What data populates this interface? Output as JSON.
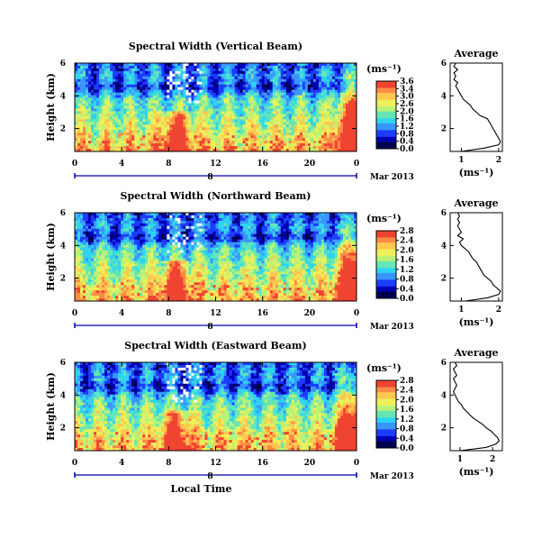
{
  "colors": {
    "colormap": [
      "#000050",
      "#0000b4",
      "#1c3cff",
      "#3a96ff",
      "#2fd4f0",
      "#66e6b4",
      "#b8f278",
      "#eef05a",
      "#ffc850",
      "#ff8c46",
      "#f04432"
    ],
    "markers": "#0000aa",
    "line": "#000000"
  },
  "chart_data": [
    {
      "type": "heatmap",
      "title": "Spectral Width (Vertical Beam)",
      "ylabel": "Height (km)",
      "x_ticks": [
        "0",
        "4",
        "8",
        "12",
        "16",
        "20",
        "0"
      ],
      "y_ticks": [
        "2",
        "4",
        "6"
      ],
      "xlim": [
        0,
        24
      ],
      "ylim": [
        0.6,
        6
      ],
      "date_marker": "8",
      "date_label": "Mar 2013",
      "colorbar": {
        "unit": "(ms⁻¹)",
        "ticks": [
          "3.6",
          "3.4",
          "3.0",
          "2.6",
          "2.0",
          "1.6",
          "1.2",
          "0.8",
          "0.4",
          "0.0"
        ]
      },
      "average_profile": {
        "title": "Average",
        "xlabel": "(ms⁻¹)",
        "x_ticks": [
          "1",
          "2"
        ],
        "y_ticks": [
          "2",
          "4",
          "6"
        ],
        "xlim": [
          0.7,
          2.1
        ],
        "ylim": [
          0.6,
          6
        ],
        "height_km": [
          0.6,
          0.8,
          1.0,
          1.2,
          1.4,
          1.6,
          1.8,
          2.0,
          2.2,
          2.4,
          2.6,
          2.8,
          3.0,
          3.2,
          3.4,
          3.6,
          3.8,
          4.0,
          4.2,
          4.4,
          4.6,
          4.8,
          5.0,
          5.2,
          5.4,
          5.6,
          5.8,
          6.0
        ],
        "width_ms": [
          1.0,
          1.6,
          2.0,
          2.05,
          2.0,
          1.95,
          1.9,
          1.85,
          1.8,
          1.75,
          1.7,
          1.5,
          1.4,
          1.3,
          1.25,
          1.15,
          1.05,
          1.0,
          0.95,
          0.9,
          0.85,
          0.9,
          0.8,
          0.85,
          0.8,
          0.9,
          0.8,
          0.85
        ]
      }
    },
    {
      "type": "heatmap",
      "title": "Spectral Width (Northward Beam)",
      "ylabel": "Height (km)",
      "x_ticks": [
        "0",
        "4",
        "8",
        "12",
        "16",
        "20",
        "0"
      ],
      "y_ticks": [
        "2",
        "4",
        "6"
      ],
      "xlim": [
        0,
        24
      ],
      "ylim": [
        0.6,
        6
      ],
      "date_marker": "8",
      "date_label": "Mar 2013",
      "colorbar": {
        "unit": "(ms⁻¹)",
        "ticks": [
          "2.8",
          "2.4",
          "2.0",
          "1.6",
          "1.2",
          "0.8",
          "0.4",
          "0.0"
        ]
      },
      "average_profile": {
        "title": "Average",
        "xlabel": "(ms⁻¹)",
        "x_ticks": [
          "1",
          "2"
        ],
        "y_ticks": [
          "2",
          "4",
          "6"
        ],
        "xlim": [
          0.7,
          2.1
        ],
        "ylim": [
          0.6,
          6
        ],
        "height_km": [
          0.6,
          0.8,
          1.0,
          1.2,
          1.4,
          1.6,
          1.8,
          2.0,
          2.2,
          2.4,
          2.6,
          2.8,
          3.0,
          3.2,
          3.4,
          3.6,
          3.8,
          4.0,
          4.2,
          4.4,
          4.6,
          4.8,
          5.0,
          5.2,
          5.4,
          5.6,
          5.8,
          6.0
        ],
        "width_ms": [
          1.1,
          1.7,
          2.0,
          2.05,
          1.95,
          1.85,
          1.8,
          1.7,
          1.6,
          1.55,
          1.5,
          1.45,
          1.4,
          1.3,
          1.25,
          1.2,
          1.1,
          1.0,
          0.95,
          1.05,
          0.9,
          1.0,
          0.95,
          0.9,
          0.95,
          0.9,
          0.95,
          0.9
        ]
      }
    },
    {
      "type": "heatmap",
      "title": "Spectral Width (Eastward Beam)",
      "ylabel": "Height (km)",
      "x_ticks": [
        "0",
        "4",
        "8",
        "12",
        "16",
        "20",
        "0"
      ],
      "y_ticks": [
        "2",
        "4",
        "6"
      ],
      "xlim": [
        0,
        24
      ],
      "ylim": [
        0.6,
        6
      ],
      "date_marker": "8",
      "date_label": "Mar 2013",
      "xlabel": "Local Time",
      "colorbar": {
        "unit": "(ms⁻¹)",
        "ticks": [
          "2.8",
          "2.4",
          "2.0",
          "1.6",
          "1.2",
          "0.8",
          "0.4",
          "0.0"
        ]
      },
      "average_profile": {
        "title": "Average",
        "xlabel": "(ms⁻¹)",
        "x_ticks": [
          "1",
          "2"
        ],
        "y_ticks": [
          "2",
          "4",
          "6"
        ],
        "xlim": [
          0.7,
          2.3
        ],
        "ylim": [
          0.6,
          6
        ],
        "height_km": [
          0.6,
          0.8,
          1.0,
          1.2,
          1.4,
          1.6,
          1.8,
          2.0,
          2.2,
          2.4,
          2.6,
          2.8,
          3.0,
          3.2,
          3.4,
          3.6,
          3.8,
          4.0,
          4.2,
          4.4,
          4.6,
          4.8,
          5.0,
          5.2,
          5.4,
          5.6,
          5.8,
          6.0
        ],
        "width_ms": [
          1.0,
          1.8,
          2.1,
          2.2,
          2.15,
          2.05,
          1.95,
          1.8,
          1.7,
          1.55,
          1.4,
          1.3,
          1.2,
          1.1,
          1.05,
          0.95,
          0.9,
          0.85,
          0.8,
          0.85,
          0.9,
          0.85,
          0.8,
          0.9,
          0.85,
          0.8,
          0.9,
          0.85
        ]
      }
    }
  ]
}
